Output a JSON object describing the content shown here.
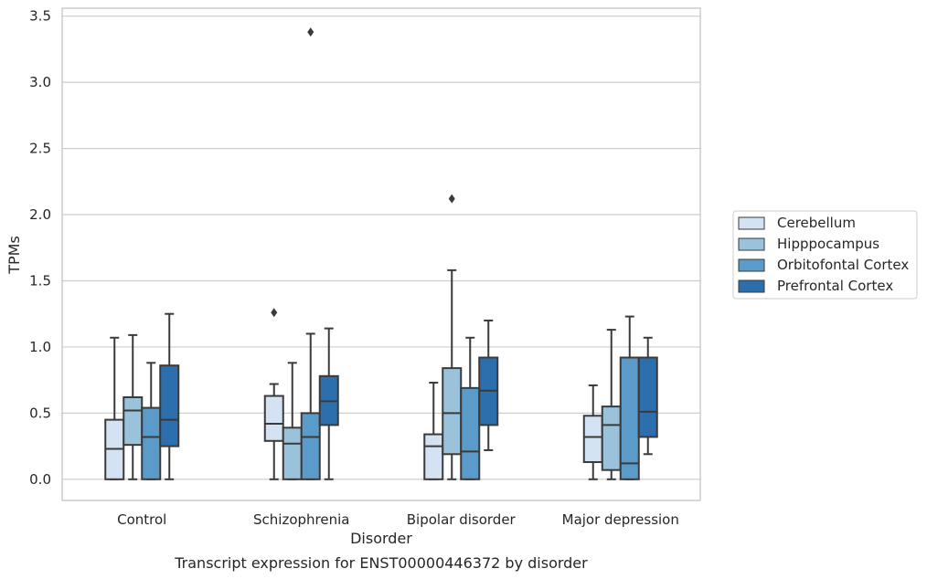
{
  "chart_data": {
    "type": "box",
    "title": "",
    "caption": "Transcript expression for ENST00000446372 by disorder",
    "xlabel": "Disorder",
    "ylabel": "TPMs",
    "ylim": [
      -0.16,
      3.56
    ],
    "yticks": [
      0.0,
      0.5,
      1.0,
      1.5,
      2.0,
      2.5,
      3.0,
      3.5
    ],
    "ytick_labels": [
      "0.0",
      "0.5",
      "1.0",
      "1.5",
      "2.0",
      "2.5",
      "3.0",
      "3.5"
    ],
    "grid": "horizontal",
    "legend_position": "right",
    "categories": [
      "Control",
      "Schizophrenia",
      "Bipolar disorder",
      "Major depression"
    ],
    "series": [
      {
        "name": "Cerebellum",
        "color": "#d3e3f3",
        "boxes": [
          {
            "whislo": 0.0,
            "q1": 0.0,
            "med": 0.23,
            "q3": 0.45,
            "whishi": 1.07,
            "fliers": []
          },
          {
            "whislo": 0.0,
            "q1": 0.29,
            "med": 0.42,
            "q3": 0.63,
            "whishi": 0.72,
            "fliers": [
              1.26
            ]
          },
          {
            "whislo": 0.0,
            "q1": 0.0,
            "med": 0.25,
            "q3": 0.34,
            "whishi": 0.73,
            "fliers": []
          },
          {
            "whislo": 0.0,
            "q1": 0.13,
            "med": 0.32,
            "q3": 0.48,
            "whishi": 0.71,
            "fliers": []
          }
        ]
      },
      {
        "name": "Hipppocampus",
        "color": "#9ac2db",
        "boxes": [
          {
            "whislo": 0.0,
            "q1": 0.26,
            "med": 0.52,
            "q3": 0.62,
            "whishi": 1.09,
            "fliers": []
          },
          {
            "whislo": 0.0,
            "q1": 0.0,
            "med": 0.27,
            "q3": 0.39,
            "whishi": 0.88,
            "fliers": []
          },
          {
            "whislo": 0.0,
            "q1": 0.19,
            "med": 0.5,
            "q3": 0.84,
            "whishi": 1.58,
            "fliers": [
              2.12
            ]
          },
          {
            "whislo": 0.0,
            "q1": 0.07,
            "med": 0.41,
            "q3": 0.55,
            "whishi": 1.13,
            "fliers": []
          }
        ]
      },
      {
        "name": "Orbitofontal Cortex",
        "color": "#5a9bc9",
        "boxes": [
          {
            "whislo": 0.0,
            "q1": 0.0,
            "med": 0.32,
            "q3": 0.54,
            "whishi": 0.88,
            "fliers": []
          },
          {
            "whislo": 0.0,
            "q1": 0.0,
            "med": 0.32,
            "q3": 0.5,
            "whishi": 1.1,
            "fliers": [
              3.38
            ]
          },
          {
            "whislo": 0.0,
            "q1": 0.0,
            "med": 0.21,
            "q3": 0.69,
            "whishi": 1.07,
            "fliers": []
          },
          {
            "whislo": 0.0,
            "q1": 0.0,
            "med": 0.12,
            "q3": 0.92,
            "whishi": 1.23,
            "fliers": []
          }
        ]
      },
      {
        "name": "Prefrontal Cortex",
        "color": "#2d6fad",
        "boxes": [
          {
            "whislo": 0.0,
            "q1": 0.25,
            "med": 0.45,
            "q3": 0.86,
            "whishi": 1.25,
            "fliers": []
          },
          {
            "whislo": 0.0,
            "q1": 0.41,
            "med": 0.59,
            "q3": 0.78,
            "whishi": 1.14,
            "fliers": []
          },
          {
            "whislo": 0.22,
            "q1": 0.41,
            "med": 0.67,
            "q3": 0.92,
            "whishi": 1.2,
            "fliers": []
          },
          {
            "whislo": 0.19,
            "q1": 0.32,
            "med": 0.51,
            "q3": 0.92,
            "whishi": 1.07,
            "fliers": []
          }
        ]
      }
    ]
  }
}
